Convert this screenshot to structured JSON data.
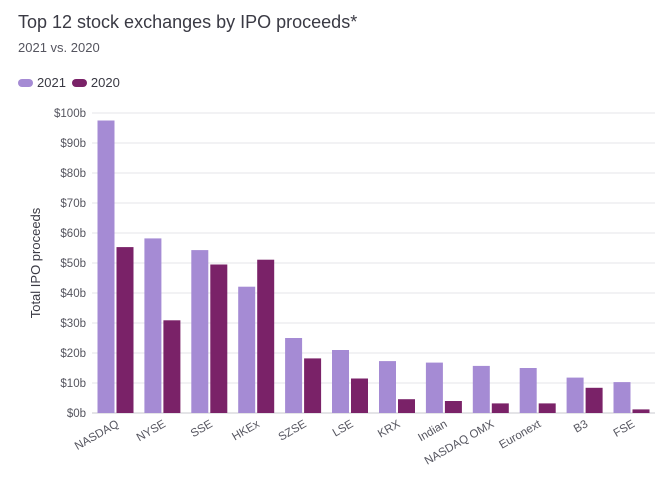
{
  "header": {
    "title": "Top 12 stock exchanges by IPO proceeds*",
    "subtitle": "2021 vs. 2020"
  },
  "colors": {
    "c2021": "#a58bd4",
    "c2020": "#7a2268",
    "grid": "#e4e4e8"
  },
  "chart_data": {
    "type": "bar",
    "ylabel": "Total IPO proceeds",
    "ylim": [
      0,
      100
    ],
    "yticks": [
      "$0b",
      "$10b",
      "$20b",
      "$30b",
      "$40b",
      "$50b",
      "$60b",
      "$70b",
      "$80b",
      "$90b",
      "$100b"
    ],
    "categories": [
      "NASDAQ",
      "NYSE",
      "SSE",
      "HKEx",
      "SZSE",
      "LSE",
      "KRX",
      "Indian",
      "NASDAQ OMX",
      "Euronext",
      "B3",
      "FSE"
    ],
    "legend_position": "top-left",
    "grid": true,
    "series": [
      {
        "name": "2021",
        "values": [
          97.5,
          58.2,
          54.3,
          42.1,
          25.0,
          21.0,
          17.3,
          16.8,
          15.7,
          15.0,
          11.8,
          10.3
        ]
      },
      {
        "name": "2020",
        "values": [
          55.3,
          30.9,
          49.5,
          51.1,
          18.2,
          11.5,
          4.6,
          4.0,
          3.2,
          3.2,
          8.4,
          1.2
        ]
      }
    ]
  }
}
